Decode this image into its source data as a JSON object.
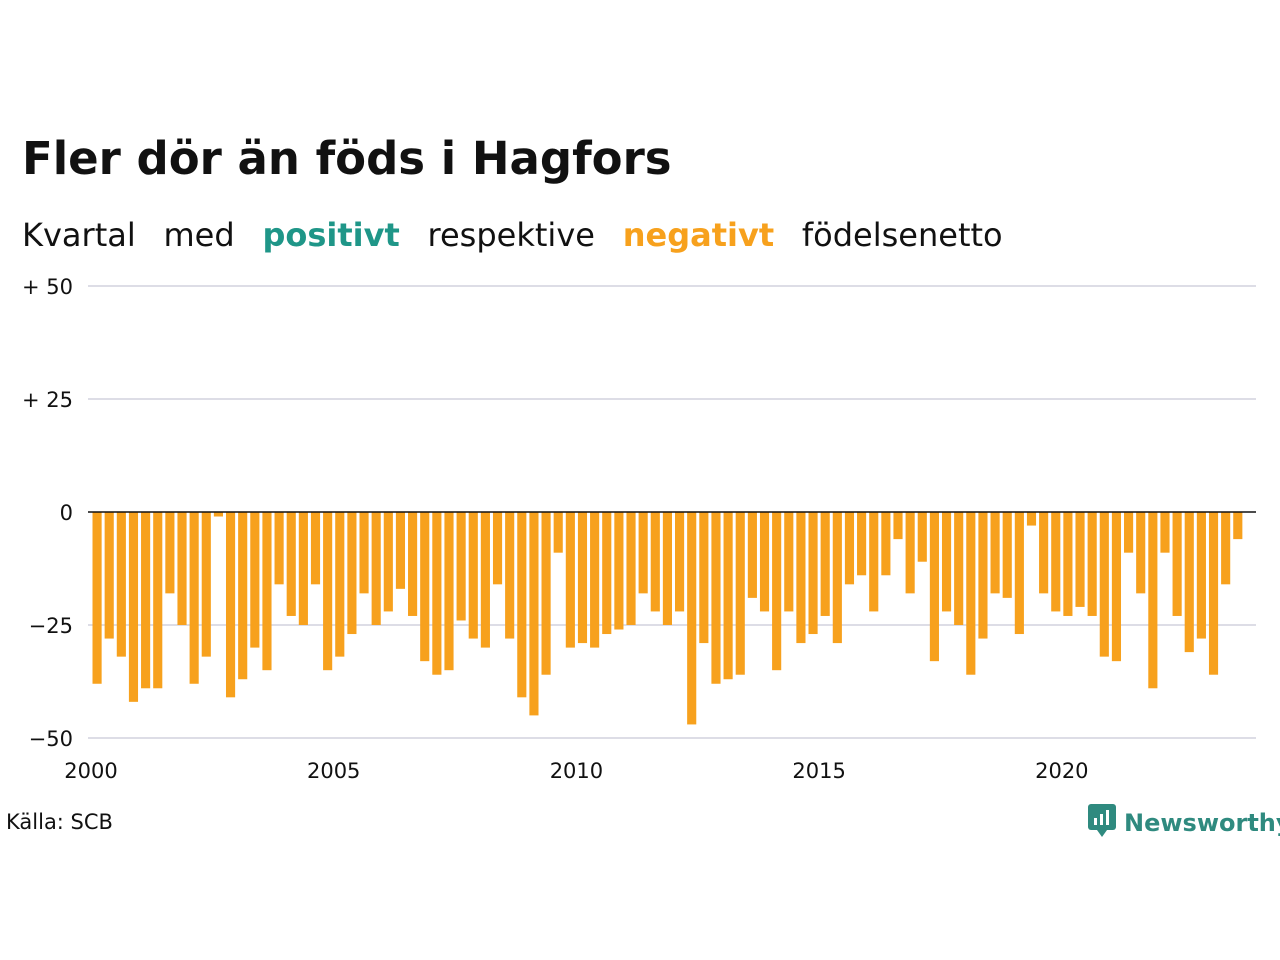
{
  "header": {
    "title": "Fler dör än föds i Hagfors",
    "subtitle_parts": [
      "Kvartal",
      "med",
      "positivt",
      "respektive",
      "negativt",
      "födelsenetto"
    ]
  },
  "colors": {
    "positive": "#1f9688",
    "negative": "#f7a11d",
    "grid": "#dddde6",
    "zero_line": "#111111"
  },
  "chart_data": {
    "type": "bar",
    "x_start": 2000,
    "x_step": 0.25,
    "xlim": [
      2000,
      2024
    ],
    "ylim": [
      -50,
      50
    ],
    "y_ticks": [
      {
        "value": 50,
        "label": "+ 50"
      },
      {
        "value": 25,
        "label": "+ 25"
      },
      {
        "value": 0,
        "label": "0"
      },
      {
        "value": -25,
        "label": "−25"
      },
      {
        "value": -50,
        "label": "−50"
      }
    ],
    "x_ticks": [
      {
        "value": 2000,
        "label": "2000"
      },
      {
        "value": 2005,
        "label": "2005"
      },
      {
        "value": 2010,
        "label": "2010"
      },
      {
        "value": 2015,
        "label": "2015"
      },
      {
        "value": 2020,
        "label": "2020"
      }
    ],
    "values": [
      -38,
      -28,
      -32,
      -42,
      -39,
      -39,
      -18,
      -25,
      -38,
      -32,
      -1,
      -41,
      -37,
      -30,
      -35,
      -16,
      -23,
      -25,
      -16,
      -35,
      -32,
      -27,
      -18,
      -25,
      -22,
      -17,
      -23,
      -33,
      -36,
      -35,
      -24,
      -28,
      -30,
      -16,
      -28,
      -41,
      -45,
      -36,
      -9,
      -30,
      -29,
      -30,
      -27,
      -26,
      -25,
      -18,
      -22,
      -25,
      -22,
      -47,
      -29,
      -38,
      -37,
      -36,
      -19,
      -22,
      -35,
      -22,
      -29,
      -27,
      -23,
      -29,
      -16,
      -14,
      -22,
      -14,
      -6,
      -18,
      -11,
      -33,
      -22,
      -25,
      -36,
      -28,
      -18,
      -19,
      -27,
      -3,
      -18,
      -22,
      -23,
      -21,
      -23,
      -32,
      -33,
      -9,
      -18,
      -39,
      -9,
      -23,
      -31,
      -28,
      -36,
      -16,
      -6
    ],
    "grid": true
  },
  "footer": {
    "source": "Källa: SCB",
    "brand": "Newsworthy",
    "brand_icon": "newsworthy-logo-icon"
  }
}
